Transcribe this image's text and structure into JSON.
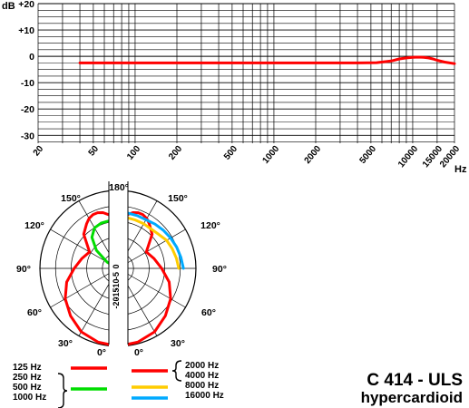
{
  "chart_data": [
    {
      "type": "line",
      "chart": "frequency-response",
      "ylabel": "dB",
      "xlabel": "Hz",
      "y_ticks": [
        "+20",
        "+10",
        "0",
        "-10",
        "-20",
        "-30"
      ],
      "x_ticks": [
        "20",
        "50",
        "100",
        "200",
        "500",
        "1000",
        "2000",
        "5000",
        "10000",
        "15000",
        "20000"
      ],
      "x_scale": "log",
      "xlim": [
        20,
        20000
      ],
      "ylim": [
        -33,
        20
      ],
      "grid": true,
      "series": [
        {
          "color": "#ff0000",
          "x": [
            40,
            100,
            200,
            500,
            1000,
            2000,
            4000,
            5500,
            7000,
            8000,
            9000,
            10000,
            11000,
            12000,
            13000,
            14000,
            15000,
            17000,
            20000
          ],
          "y": [
            -2.5,
            -2.5,
            -2.5,
            -2.5,
            -2.5,
            -2.5,
            -2.5,
            -2.4,
            -1.8,
            -1.0,
            -0.6,
            -0.4,
            -0.3,
            -0.4,
            -0.6,
            -1.0,
            -1.5,
            -2.2,
            -2.8
          ]
        }
      ]
    },
    {
      "type": "polar",
      "chart": "polar-pattern",
      "angle_labels": [
        "180°",
        "150°",
        "120°",
        "90°",
        "60°",
        "30°",
        "0°",
        "150°",
        "120°",
        "90°",
        "60°",
        "30°",
        "0°"
      ],
      "radial_labels": [
        "0",
        "-5",
        "-10",
        "-15",
        "-20"
      ],
      "rlim": [
        -25,
        0
      ],
      "series": [
        {
          "color": "#ff0000",
          "side": "left",
          "angles_deg": [
            0,
            15,
            30,
            45,
            60,
            75,
            90,
            105,
            120,
            135,
            145,
            150,
            155,
            160,
            165,
            170,
            180
          ],
          "levels_db": [
            0,
            -0.5,
            -1.5,
            -3.5,
            -5.5,
            -8,
            -11,
            -13,
            -14.5,
            -9.5,
            -7.5,
            -6.5,
            -6,
            -6,
            -6.5,
            -7.5,
            -9
          ]
        },
        {
          "color": "#00dd00",
          "side": "left",
          "angles_deg": [
            115,
            120,
            130,
            140,
            150,
            160,
            170
          ],
          "levels_db": [
            -24,
            -21,
            -16,
            -12,
            -10,
            -9.5,
            -9.5
          ]
        },
        {
          "color": "#ff0000",
          "side": "right",
          "angles_deg": [
            0,
            15,
            30,
            45,
            60,
            75,
            90,
            105,
            120,
            135,
            145,
            150,
            155,
            160,
            165,
            170,
            180
          ],
          "levels_db": [
            0,
            -0.5,
            -1.5,
            -3.5,
            -5.5,
            -8,
            -11,
            -13,
            -14.5,
            -9.5,
            -7.5,
            -6.5,
            -6,
            -6,
            -6.5,
            -7.5,
            -9
          ]
        },
        {
          "color": "#ffcc00",
          "side": "right",
          "angles_deg": [
            90,
            100,
            110,
            120,
            130,
            140,
            150,
            160,
            170,
            175
          ],
          "levels_db": [
            -5.5,
            -6,
            -6.5,
            -7,
            -8,
            -8.5,
            -8.5,
            -8.5,
            -8.5,
            -8.5
          ]
        },
        {
          "color": "#00aaff",
          "side": "right",
          "angles_deg": [
            90,
            100,
            110,
            120,
            130,
            140,
            150,
            160,
            170,
            175
          ],
          "levels_db": [
            -4,
            -4.5,
            -5,
            -5.5,
            -6,
            -6.5,
            -7,
            -7,
            -7,
            -7
          ]
        }
      ]
    }
  ],
  "legend": {
    "left_labels": [
      "125 Hz",
      "250 Hz",
      "500 Hz",
      "1000 Hz"
    ],
    "right_labels": [
      "2000 Hz",
      "4000 Hz",
      "8000 Hz",
      "16000 Hz"
    ],
    "line_colors": [
      "#ff0000",
      "#00dd00",
      "#ff0000",
      "#ffcc00",
      "#00aaff"
    ]
  },
  "model": {
    "name": "C 414 - ULS",
    "pattern": "hypercardioid"
  }
}
